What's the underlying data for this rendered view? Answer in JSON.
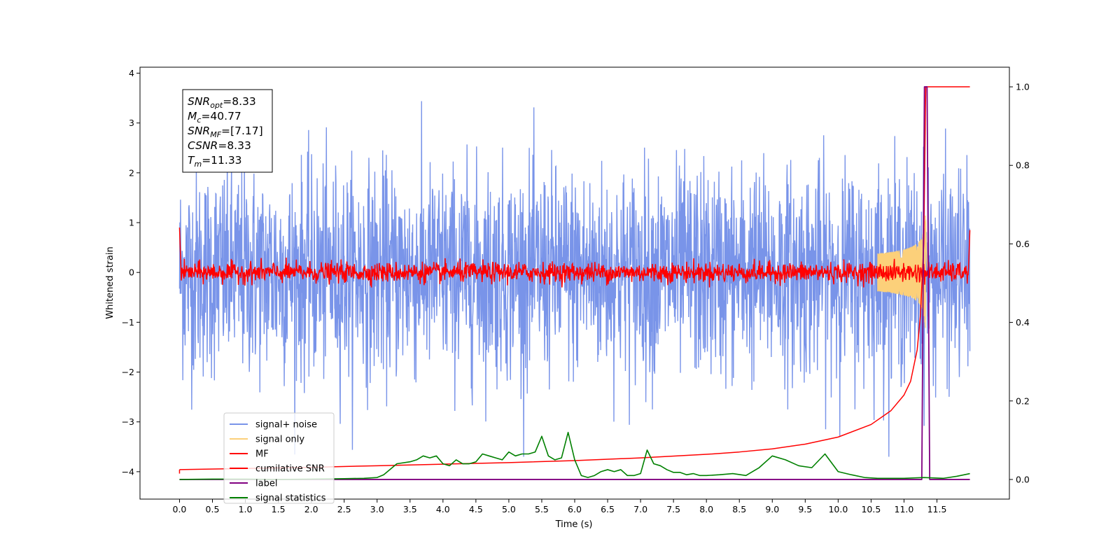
{
  "chart_data": {
    "type": "line",
    "xlabel": "Time (s)",
    "ylabel": "Whitened strain",
    "xlim": [
      -0.6,
      12.6
    ],
    "ylim_left": [
      -4.55,
      4.12
    ],
    "ylim_right": [
      -0.05,
      1.05
    ],
    "x_ticks": [
      "0.0",
      "0.5",
      "1.0",
      "1.5",
      "2.0",
      "2.5",
      "3.0",
      "3.5",
      "4.0",
      "4.5",
      "5.0",
      "5.5",
      "6.0",
      "6.5",
      "7.0",
      "7.5",
      "8.0",
      "8.5",
      "9.0",
      "9.5",
      "10.0",
      "10.5",
      "11.0",
      "11.5"
    ],
    "y_ticks_left": [
      "−4",
      "−3",
      "−2",
      "−1",
      "0",
      "1",
      "2",
      "3",
      "4"
    ],
    "y_ticks_right": [
      "0.0",
      "0.2",
      "0.4",
      "0.6",
      "0.8",
      "1.0"
    ],
    "grid": false,
    "legend_position": "lower-left",
    "info_box": {
      "lines": [
        {
          "var": "SNR",
          "sub": "opt",
          "value": "=8.33"
        },
        {
          "var": "M",
          "sub": "c",
          "value": "=40.77"
        },
        {
          "var": "SNR",
          "sub": "MF",
          "value": "=[7.17]"
        },
        {
          "var": "CSNR",
          "sub": "",
          "value": "=8.33"
        },
        {
          "var": "T",
          "sub": "m",
          "value": "=11.33"
        }
      ]
    },
    "series": [
      {
        "name": "signal+ noise",
        "color": "#7994e9",
        "axis": "left",
        "x_range": [
          0.0,
          12.0
        ],
        "approx_envelope": [
          -3.7,
          3.75
        ]
      },
      {
        "name": "signal only",
        "color": "#fcd07a",
        "axis": "left",
        "x_range": [
          0.0,
          12.0
        ],
        "peak_time": 11.33,
        "peak_amplitude": 1.4
      },
      {
        "name": "MF",
        "color": "#ff0000",
        "axis": "left",
        "x_range": [
          0.0,
          12.0
        ],
        "approx_envelope": [
          -0.3,
          0.35
        ]
      },
      {
        "name": "cumilative SNR",
        "color": "#ff0000",
        "axis": "right",
        "x": [
          0.0,
          1.0,
          2.0,
          3.0,
          4.0,
          5.0,
          6.0,
          7.0,
          8.0,
          8.5,
          9.0,
          9.5,
          10.0,
          10.5,
          10.8,
          11.0,
          11.1,
          11.2,
          11.25,
          11.3,
          11.33,
          12.0
        ],
        "values": [
          0.025,
          0.028,
          0.031,
          0.035,
          0.039,
          0.043,
          0.048,
          0.055,
          0.064,
          0.07,
          0.078,
          0.09,
          0.108,
          0.14,
          0.175,
          0.215,
          0.25,
          0.33,
          0.42,
          0.6,
          1.0,
          1.0
        ]
      },
      {
        "name": "label",
        "color": "#800080",
        "axis": "right",
        "x": [
          0.0,
          11.27,
          11.31,
          11.35,
          11.39,
          12.0
        ],
        "values": [
          0.0,
          0.0,
          1.0,
          1.0,
          0.0,
          0.0
        ]
      },
      {
        "name": "signal statistics",
        "color": "#008000",
        "axis": "right",
        "x": [
          0.0,
          0.5,
          1.0,
          1.5,
          2.0,
          2.5,
          2.8,
          3.0,
          3.1,
          3.3,
          3.5,
          3.6,
          3.7,
          3.8,
          3.9,
          4.0,
          4.1,
          4.2,
          4.3,
          4.4,
          4.5,
          4.6,
          4.7,
          4.8,
          4.9,
          5.0,
          5.1,
          5.2,
          5.3,
          5.4,
          5.5,
          5.6,
          5.7,
          5.8,
          5.9,
          6.0,
          6.1,
          6.2,
          6.3,
          6.4,
          6.5,
          6.6,
          6.7,
          6.8,
          6.9,
          7.0,
          7.1,
          7.2,
          7.3,
          7.4,
          7.5,
          7.6,
          7.7,
          7.8,
          7.9,
          8.0,
          8.2,
          8.4,
          8.6,
          8.8,
          9.0,
          9.2,
          9.4,
          9.6,
          9.8,
          10.0,
          10.2,
          10.4,
          10.6,
          10.8,
          11.0,
          11.3,
          11.6,
          11.8,
          12.0
        ],
        "values": [
          0.0,
          0.001,
          0.001,
          0.0,
          0.001,
          0.002,
          0.003,
          0.005,
          0.012,
          0.04,
          0.045,
          0.05,
          0.06,
          0.055,
          0.06,
          0.04,
          0.035,
          0.05,
          0.04,
          0.04,
          0.045,
          0.065,
          0.06,
          0.055,
          0.05,
          0.07,
          0.06,
          0.065,
          0.065,
          0.07,
          0.11,
          0.06,
          0.05,
          0.055,
          0.12,
          0.05,
          0.01,
          0.005,
          0.01,
          0.02,
          0.025,
          0.02,
          0.025,
          0.01,
          0.01,
          0.015,
          0.075,
          0.04,
          0.035,
          0.025,
          0.018,
          0.018,
          0.012,
          0.015,
          0.01,
          0.01,
          0.012,
          0.015,
          0.01,
          0.03,
          0.06,
          0.05,
          0.035,
          0.03,
          0.065,
          0.02,
          0.012,
          0.005,
          0.003,
          0.003,
          0.003,
          0.005,
          0.003,
          0.008,
          0.015
        ]
      }
    ]
  }
}
